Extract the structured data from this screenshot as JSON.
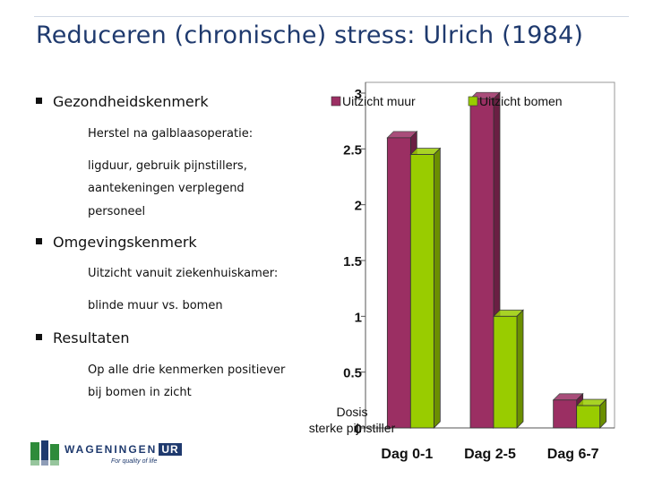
{
  "slide": {
    "title": "Reduceren (chronische) stress: Ulrich (1984)",
    "bullets": [
      {
        "label": "Gezondheidskenmerk",
        "subs": [
          "Herstel na galblaasoperatie:",
          "ligduur, gebruik pijnstillers,",
          "aantekeningen verplegend",
          "personeel"
        ]
      },
      {
        "label": "Omgevingskenmerk",
        "subs": [
          "Uitzicht vanuit ziekenhuiskamer:",
          "blinde muur vs. bomen"
        ]
      },
      {
        "label": "Resultaten",
        "subs": [
          "Op alle drie kenmerken positiever",
          "bij bomen in zicht"
        ]
      }
    ]
  },
  "logo": {
    "word": "WAGENINGEN",
    "ur": "UR",
    "tagline": "For quality of life"
  },
  "colors": {
    "title": "#1f3a6e",
    "series_muur": "#9b2f63",
    "series_bomen": "#99cc00"
  },
  "chart_data": {
    "type": "bar",
    "title": "",
    "xlabel": "",
    "ylabel": "Dosis sterke pijnstiller",
    "categories": [
      "Dag 0-1",
      "Dag 2-5",
      "Dag 6-7"
    ],
    "series": [
      {
        "name": "Uitzicht muur",
        "values": [
          2.6,
          2.95,
          0.25
        ]
      },
      {
        "name": "Uitzicht bomen",
        "values": [
          2.45,
          1.0,
          0.2
        ]
      }
    ],
    "ylim": [
      0,
      3
    ],
    "yticks": [
      "0",
      "0.5",
      "1",
      "1.5",
      "2",
      "2.5",
      "3"
    ],
    "legend": "top",
    "grid": false
  }
}
